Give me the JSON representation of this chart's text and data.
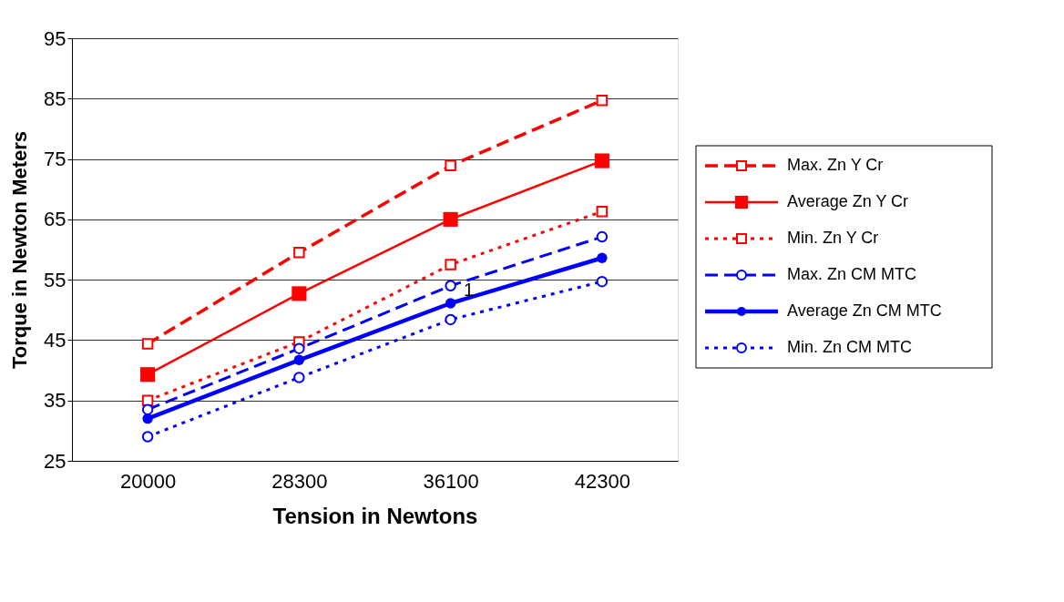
{
  "chart_data": {
    "type": "line",
    "xlabel": "Tension in Newtons",
    "ylabel": "Torque in Newton Meters",
    "categories": [
      "20000",
      "28300",
      "36100",
      "42300"
    ],
    "ylim": [
      25,
      95
    ],
    "yticks": [
      25,
      35,
      45,
      55,
      65,
      75,
      85,
      95
    ],
    "grid": "y",
    "legend": "right",
    "series": [
      {
        "name": "Max. Zn Y Cr",
        "color": "#ff0000",
        "line_style": "dashed",
        "marker": "square",
        "values": [
          44.4,
          59.5,
          73.9,
          84.7
        ]
      },
      {
        "name": "Average Zn Y Cr",
        "color": "#ff0000",
        "line_style": "solid",
        "marker": "square",
        "values": [
          39.3,
          52.7,
          65.0,
          74.7
        ]
      },
      {
        "name": "Min. Zn Y Cr",
        "color": "#ff0000",
        "line_style": "dotted",
        "marker": "square",
        "values": [
          35.0,
          44.7,
          57.5,
          66.3
        ]
      },
      {
        "name": "Max. Zn CM MTC",
        "color": "#0000ff",
        "line_style": "dashed",
        "marker": "circle",
        "values": [
          33.5,
          43.6,
          54.0,
          62.1
        ]
      },
      {
        "name": "Average Zn CM MTC",
        "color": "#0000ff",
        "line_style": "solid",
        "marker": "circle",
        "values": [
          32.0,
          41.7,
          51.1,
          58.6
        ]
      },
      {
        "name": "Min. Zn CM MTC",
        "color": "#0000ff",
        "line_style": "dotted",
        "marker": "circle",
        "values": [
          29.0,
          38.8,
          48.4,
          54.7
        ]
      }
    ],
    "annotations": [
      {
        "text": "1",
        "x": "36100",
        "y": 51.1
      }
    ]
  }
}
